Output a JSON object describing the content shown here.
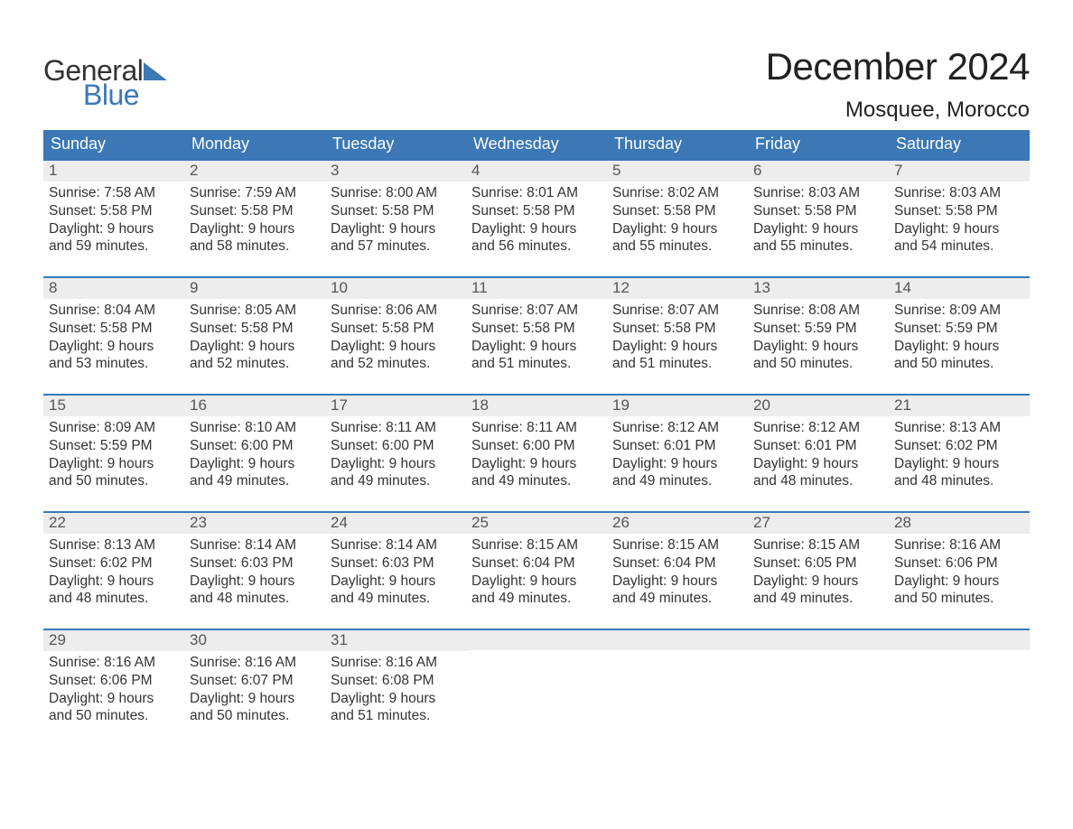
{
  "brand": {
    "word1": "General",
    "word2": "Blue"
  },
  "title": "December 2024",
  "location": "Mosquee, Morocco",
  "colors": {
    "header_bg": "#3b78b5",
    "daynum_bg": "#ededed",
    "text": "#333333",
    "brand_blue": "#3b78b5"
  },
  "weekdays": [
    "Sunday",
    "Monday",
    "Tuesday",
    "Wednesday",
    "Thursday",
    "Friday",
    "Saturday"
  ],
  "weeks": [
    [
      {
        "n": "1",
        "sunrise": "Sunrise: 7:58 AM",
        "sunset": "Sunset: 5:58 PM",
        "dl1": "Daylight: 9 hours",
        "dl2": "and 59 minutes."
      },
      {
        "n": "2",
        "sunrise": "Sunrise: 7:59 AM",
        "sunset": "Sunset: 5:58 PM",
        "dl1": "Daylight: 9 hours",
        "dl2": "and 58 minutes."
      },
      {
        "n": "3",
        "sunrise": "Sunrise: 8:00 AM",
        "sunset": "Sunset: 5:58 PM",
        "dl1": "Daylight: 9 hours",
        "dl2": "and 57 minutes."
      },
      {
        "n": "4",
        "sunrise": "Sunrise: 8:01 AM",
        "sunset": "Sunset: 5:58 PM",
        "dl1": "Daylight: 9 hours",
        "dl2": "and 56 minutes."
      },
      {
        "n": "5",
        "sunrise": "Sunrise: 8:02 AM",
        "sunset": "Sunset: 5:58 PM",
        "dl1": "Daylight: 9 hours",
        "dl2": "and 55 minutes."
      },
      {
        "n": "6",
        "sunrise": "Sunrise: 8:03 AM",
        "sunset": "Sunset: 5:58 PM",
        "dl1": "Daylight: 9 hours",
        "dl2": "and 55 minutes."
      },
      {
        "n": "7",
        "sunrise": "Sunrise: 8:03 AM",
        "sunset": "Sunset: 5:58 PM",
        "dl1": "Daylight: 9 hours",
        "dl2": "and 54 minutes."
      }
    ],
    [
      {
        "n": "8",
        "sunrise": "Sunrise: 8:04 AM",
        "sunset": "Sunset: 5:58 PM",
        "dl1": "Daylight: 9 hours",
        "dl2": "and 53 minutes."
      },
      {
        "n": "9",
        "sunrise": "Sunrise: 8:05 AM",
        "sunset": "Sunset: 5:58 PM",
        "dl1": "Daylight: 9 hours",
        "dl2": "and 52 minutes."
      },
      {
        "n": "10",
        "sunrise": "Sunrise: 8:06 AM",
        "sunset": "Sunset: 5:58 PM",
        "dl1": "Daylight: 9 hours",
        "dl2": "and 52 minutes."
      },
      {
        "n": "11",
        "sunrise": "Sunrise: 8:07 AM",
        "sunset": "Sunset: 5:58 PM",
        "dl1": "Daylight: 9 hours",
        "dl2": "and 51 minutes."
      },
      {
        "n": "12",
        "sunrise": "Sunrise: 8:07 AM",
        "sunset": "Sunset: 5:58 PM",
        "dl1": "Daylight: 9 hours",
        "dl2": "and 51 minutes."
      },
      {
        "n": "13",
        "sunrise": "Sunrise: 8:08 AM",
        "sunset": "Sunset: 5:59 PM",
        "dl1": "Daylight: 9 hours",
        "dl2": "and 50 minutes."
      },
      {
        "n": "14",
        "sunrise": "Sunrise: 8:09 AM",
        "sunset": "Sunset: 5:59 PM",
        "dl1": "Daylight: 9 hours",
        "dl2": "and 50 minutes."
      }
    ],
    [
      {
        "n": "15",
        "sunrise": "Sunrise: 8:09 AM",
        "sunset": "Sunset: 5:59 PM",
        "dl1": "Daylight: 9 hours",
        "dl2": "and 50 minutes."
      },
      {
        "n": "16",
        "sunrise": "Sunrise: 8:10 AM",
        "sunset": "Sunset: 6:00 PM",
        "dl1": "Daylight: 9 hours",
        "dl2": "and 49 minutes."
      },
      {
        "n": "17",
        "sunrise": "Sunrise: 8:11 AM",
        "sunset": "Sunset: 6:00 PM",
        "dl1": "Daylight: 9 hours",
        "dl2": "and 49 minutes."
      },
      {
        "n": "18",
        "sunrise": "Sunrise: 8:11 AM",
        "sunset": "Sunset: 6:00 PM",
        "dl1": "Daylight: 9 hours",
        "dl2": "and 49 minutes."
      },
      {
        "n": "19",
        "sunrise": "Sunrise: 8:12 AM",
        "sunset": "Sunset: 6:01 PM",
        "dl1": "Daylight: 9 hours",
        "dl2": "and 49 minutes."
      },
      {
        "n": "20",
        "sunrise": "Sunrise: 8:12 AM",
        "sunset": "Sunset: 6:01 PM",
        "dl1": "Daylight: 9 hours",
        "dl2": "and 48 minutes."
      },
      {
        "n": "21",
        "sunrise": "Sunrise: 8:13 AM",
        "sunset": "Sunset: 6:02 PM",
        "dl1": "Daylight: 9 hours",
        "dl2": "and 48 minutes."
      }
    ],
    [
      {
        "n": "22",
        "sunrise": "Sunrise: 8:13 AM",
        "sunset": "Sunset: 6:02 PM",
        "dl1": "Daylight: 9 hours",
        "dl2": "and 48 minutes."
      },
      {
        "n": "23",
        "sunrise": "Sunrise: 8:14 AM",
        "sunset": "Sunset: 6:03 PM",
        "dl1": "Daylight: 9 hours",
        "dl2": "and 48 minutes."
      },
      {
        "n": "24",
        "sunrise": "Sunrise: 8:14 AM",
        "sunset": "Sunset: 6:03 PM",
        "dl1": "Daylight: 9 hours",
        "dl2": "and 49 minutes."
      },
      {
        "n": "25",
        "sunrise": "Sunrise: 8:15 AM",
        "sunset": "Sunset: 6:04 PM",
        "dl1": "Daylight: 9 hours",
        "dl2": "and 49 minutes."
      },
      {
        "n": "26",
        "sunrise": "Sunrise: 8:15 AM",
        "sunset": "Sunset: 6:04 PM",
        "dl1": "Daylight: 9 hours",
        "dl2": "and 49 minutes."
      },
      {
        "n": "27",
        "sunrise": "Sunrise: 8:15 AM",
        "sunset": "Sunset: 6:05 PM",
        "dl1": "Daylight: 9 hours",
        "dl2": "and 49 minutes."
      },
      {
        "n": "28",
        "sunrise": "Sunrise: 8:16 AM",
        "sunset": "Sunset: 6:06 PM",
        "dl1": "Daylight: 9 hours",
        "dl2": "and 50 minutes."
      }
    ],
    [
      {
        "n": "29",
        "sunrise": "Sunrise: 8:16 AM",
        "sunset": "Sunset: 6:06 PM",
        "dl1": "Daylight: 9 hours",
        "dl2": "and 50 minutes."
      },
      {
        "n": "30",
        "sunrise": "Sunrise: 8:16 AM",
        "sunset": "Sunset: 6:07 PM",
        "dl1": "Daylight: 9 hours",
        "dl2": "and 50 minutes."
      },
      {
        "n": "31",
        "sunrise": "Sunrise: 8:16 AM",
        "sunset": "Sunset: 6:08 PM",
        "dl1": "Daylight: 9 hours",
        "dl2": "and 51 minutes."
      },
      {
        "empty": true
      },
      {
        "empty": true
      },
      {
        "empty": true
      },
      {
        "empty": true
      }
    ]
  ]
}
